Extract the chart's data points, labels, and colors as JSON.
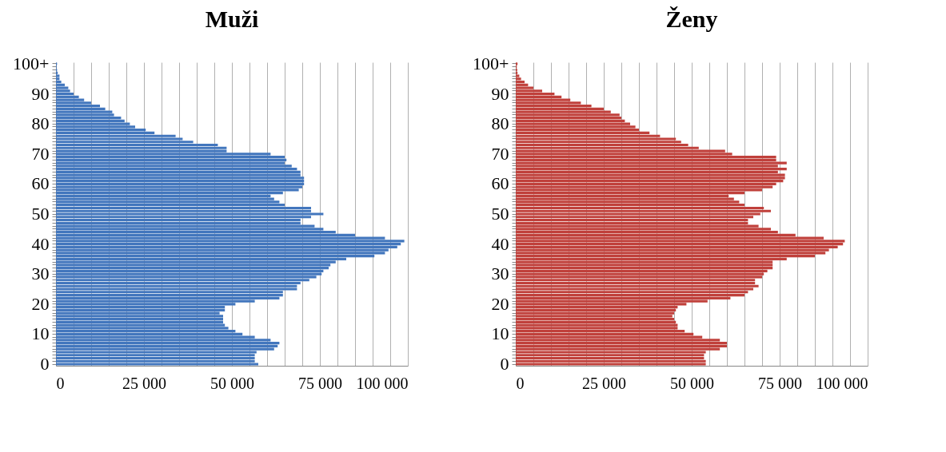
{
  "chart_data": [
    {
      "type": "bar",
      "orientation": "horizontal",
      "title": "Muži",
      "grid": "x",
      "color": "#4276bd",
      "categories": [
        "100+",
        null,
        null,
        null,
        null,
        null,
        null,
        null,
        null,
        null,
        "90",
        null,
        null,
        null,
        null,
        null,
        null,
        null,
        null,
        null,
        "80",
        null,
        null,
        null,
        null,
        null,
        null,
        null,
        null,
        null,
        "70",
        null,
        null,
        null,
        null,
        null,
        null,
        null,
        null,
        null,
        "60",
        null,
        null,
        null,
        null,
        null,
        null,
        null,
        null,
        null,
        "50",
        null,
        null,
        null,
        null,
        null,
        null,
        null,
        null,
        null,
        "40",
        null,
        null,
        null,
        null,
        null,
        null,
        null,
        null,
        null,
        "30",
        null,
        null,
        null,
        null,
        null,
        null,
        null,
        null,
        null,
        "20",
        null,
        null,
        null,
        null,
        null,
        null,
        null,
        null,
        null,
        "10",
        null,
        null,
        null,
        null,
        null,
        null,
        null,
        null,
        null,
        "0"
      ],
      "values": [
        300,
        200,
        300,
        500,
        1000,
        1000,
        1500,
        2500,
        3500,
        4000,
        5000,
        6500,
        8000,
        10000,
        12500,
        14000,
        16000,
        16500,
        18500,
        19500,
        21000,
        22500,
        25500,
        28000,
        34000,
        36000,
        39000,
        46000,
        48500,
        48500,
        61000,
        65000,
        65500,
        65000,
        67000,
        68500,
        69500,
        69500,
        70500,
        70500,
        70500,
        70000,
        69000,
        64500,
        61000,
        62000,
        63500,
        65000,
        72500,
        72500,
        76000,
        72500,
        69500,
        69500,
        73500,
        76000,
        79500,
        85000,
        93500,
        99000,
        98000,
        97000,
        94500,
        93500,
        90500,
        82500,
        79500,
        78000,
        77500,
        76000,
        75500,
        74000,
        72000,
        69500,
        68500,
        68500,
        64500,
        64500,
        63500,
        56500,
        51000,
        48000,
        48000,
        46500,
        47500,
        47500,
        47500,
        48000,
        49000,
        51000,
        53000,
        56500,
        61000,
        63500,
        63000,
        62000,
        57000,
        56500,
        56500,
        56500,
        57500
      ],
      "xlim": [
        0,
        100000
      ],
      "xticks": [
        0,
        {
          "value": 5000,
          "label": null
        },
        {
          "value": 10000,
          "label": null
        },
        {
          "value": 15000,
          "label": null
        },
        {
          "value": 20000,
          "label": null
        },
        {
          "value": 25000,
          "label": "25 000"
        },
        {
          "value": 30000,
          "label": null
        },
        {
          "value": 35000,
          "label": null
        },
        {
          "value": 40000,
          "label": null
        },
        {
          "value": 45000,
          "label": null
        },
        {
          "value": 50000,
          "label": "50 000"
        },
        {
          "value": 55000,
          "label": null
        },
        {
          "value": 60000,
          "label": null
        },
        {
          "value": 65000,
          "label": null
        },
        {
          "value": 70000,
          "label": null
        },
        {
          "value": 75000,
          "label": "75 000"
        },
        {
          "value": 80000,
          "label": null
        },
        {
          "value": 85000,
          "label": null
        },
        {
          "value": 90000,
          "label": null
        },
        {
          "value": 95000,
          "label": null
        },
        {
          "value": 100000,
          "label": "100 000"
        }
      ]
    },
    {
      "type": "bar",
      "orientation": "horizontal",
      "title": "Ženy",
      "grid": "x",
      "color": "#c0403b",
      "categories": [
        "100+",
        null,
        null,
        null,
        null,
        null,
        null,
        null,
        null,
        null,
        "90",
        null,
        null,
        null,
        null,
        null,
        null,
        null,
        null,
        null,
        "80",
        null,
        null,
        null,
        null,
        null,
        null,
        null,
        null,
        null,
        "70",
        null,
        null,
        null,
        null,
        null,
        null,
        null,
        null,
        null,
        "60",
        null,
        null,
        null,
        null,
        null,
        null,
        null,
        null,
        null,
        "50",
        null,
        null,
        null,
        null,
        null,
        null,
        null,
        null,
        null,
        "40",
        null,
        null,
        null,
        null,
        null,
        null,
        null,
        null,
        null,
        "30",
        null,
        null,
        null,
        null,
        null,
        null,
        null,
        null,
        null,
        "20",
        null,
        null,
        null,
        null,
        null,
        null,
        null,
        null,
        null,
        "10",
        null,
        null,
        null,
        null,
        null,
        null,
        null,
        null,
        null,
        "0"
      ],
      "values": [
        500,
        300,
        400,
        500,
        1000,
        1500,
        2500,
        3500,
        5000,
        7500,
        11000,
        13000,
        15500,
        18500,
        21500,
        25000,
        27000,
        29500,
        30000,
        31000,
        32500,
        34000,
        35000,
        38000,
        41000,
        45500,
        47000,
        49000,
        52000,
        59500,
        61500,
        74000,
        74000,
        77000,
        74500,
        77000,
        74500,
        76500,
        76500,
        76000,
        74000,
        73000,
        70000,
        65000,
        60500,
        62000,
        63500,
        65000,
        70500,
        72500,
        69500,
        67500,
        66000,
        66000,
        69000,
        72500,
        74500,
        79500,
        87500,
        93500,
        93000,
        91500,
        89000,
        88000,
        85000,
        77000,
        73000,
        73000,
        73000,
        71500,
        70500,
        70000,
        68000,
        68000,
        69000,
        67500,
        66000,
        65000,
        61000,
        54500,
        48500,
        46000,
        45500,
        45000,
        44500,
        45000,
        45500,
        46000,
        46000,
        48000,
        50500,
        53000,
        58000,
        60000,
        60000,
        58000,
        54000,
        53500,
        53500,
        54000,
        54000
      ],
      "xlim": [
        0,
        100000
      ],
      "xticks": [
        0,
        {
          "value": 5000,
          "label": null
        },
        {
          "value": 10000,
          "label": null
        },
        {
          "value": 15000,
          "label": null
        },
        {
          "value": 20000,
          "label": null
        },
        {
          "value": 25000,
          "label": "25 000"
        },
        {
          "value": 30000,
          "label": null
        },
        {
          "value": 35000,
          "label": null
        },
        {
          "value": 40000,
          "label": null
        },
        {
          "value": 45000,
          "label": null
        },
        {
          "value": 50000,
          "label": "50 000"
        },
        {
          "value": 55000,
          "label": null
        },
        {
          "value": 60000,
          "label": null
        },
        {
          "value": 65000,
          "label": null
        },
        {
          "value": 70000,
          "label": null
        },
        {
          "value": 75000,
          "label": "75 000"
        },
        {
          "value": 80000,
          "label": null
        },
        {
          "value": 85000,
          "label": null
        },
        {
          "value": 90000,
          "label": null
        },
        {
          "value": 95000,
          "label": null
        },
        {
          "value": 100000,
          "label": "100 000"
        }
      ]
    }
  ]
}
